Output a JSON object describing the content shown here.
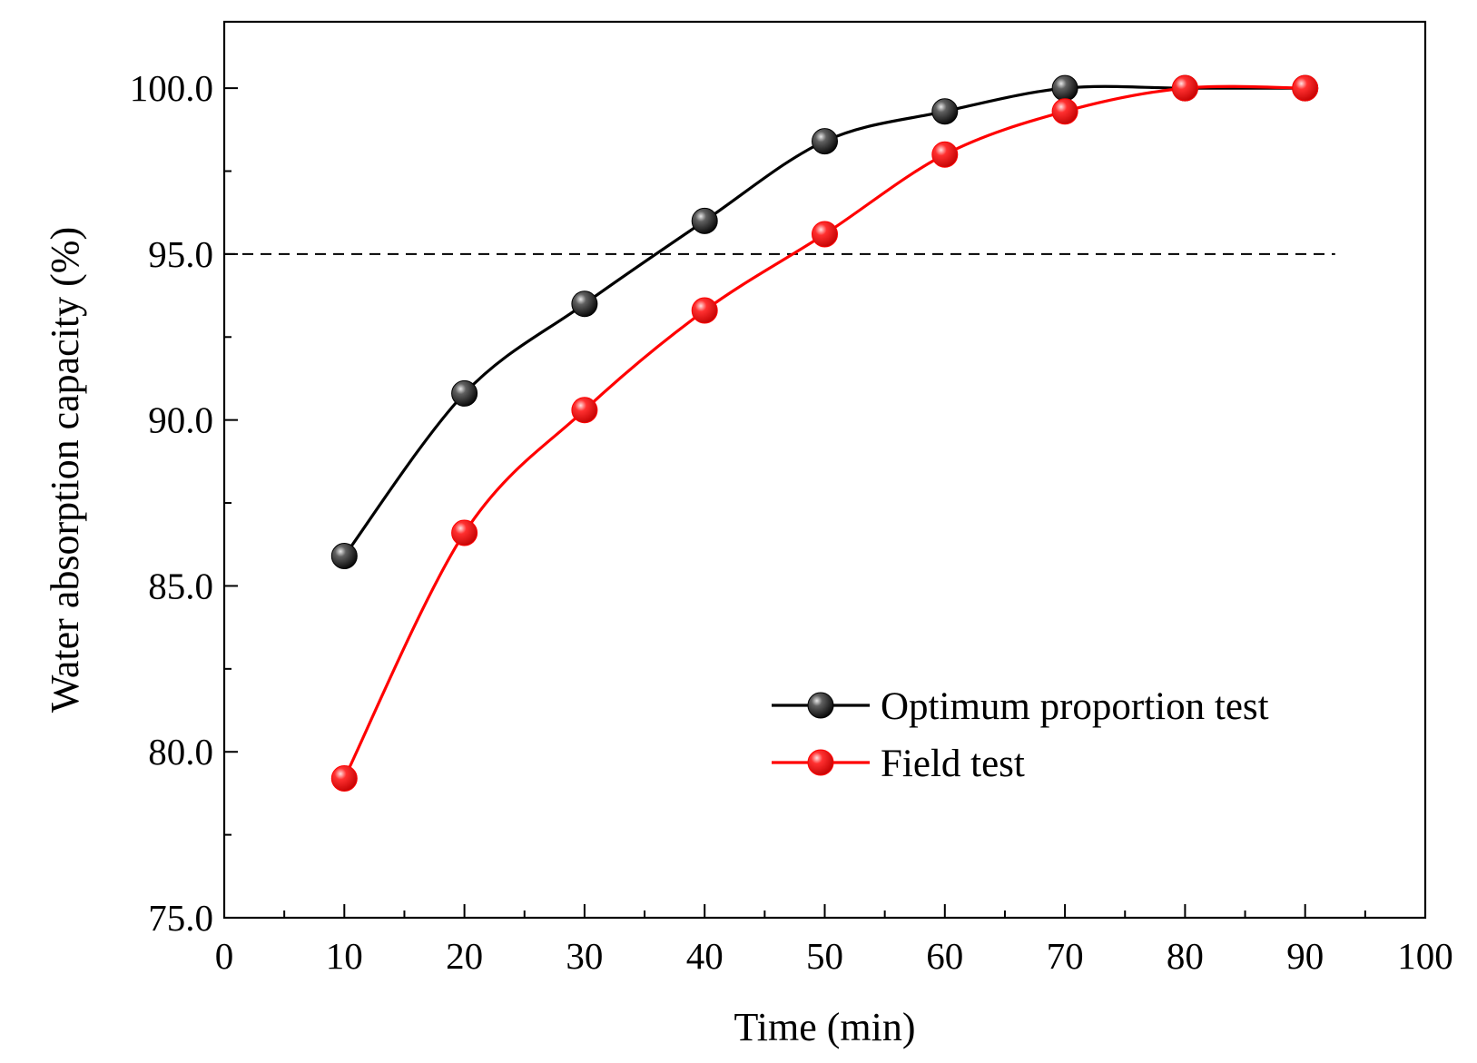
{
  "chart_data": {
    "type": "line",
    "title": "",
    "xlabel": "Time (min)",
    "ylabel": "Water absorption capacity (%)",
    "xlim": [
      0,
      100
    ],
    "ylim": [
      75,
      102
    ],
    "x_ticks": [
      0,
      10,
      20,
      30,
      40,
      50,
      60,
      70,
      80,
      90,
      100
    ],
    "y_ticks": [
      75,
      80,
      85,
      90,
      95,
      100
    ],
    "x_tick_labels": [
      "0",
      "10",
      "20",
      "30",
      "40",
      "50",
      "60",
      "70",
      "80",
      "90",
      "100"
    ],
    "y_tick_labels": [
      "75.0",
      "80.0",
      "85.0",
      "90.0",
      "95.0",
      "100.0"
    ],
    "grid": false,
    "legend_position": "lower-right",
    "reference_line": {
      "y": 95.0,
      "style": "dashed",
      "color": "#000000"
    },
    "series": [
      {
        "name": "Optimum proportion test",
        "color": "#000000",
        "marker": "sphere",
        "x": [
          10,
          20,
          30,
          40,
          50,
          60,
          70,
          80,
          90
        ],
        "y": [
          85.9,
          90.8,
          93.5,
          96.0,
          98.4,
          99.3,
          100.0,
          100.0,
          100.0
        ]
      },
      {
        "name": "Field test",
        "color": "#ff0000",
        "marker": "sphere",
        "x": [
          10,
          20,
          30,
          40,
          50,
          60,
          70,
          80,
          90
        ],
        "y": [
          79.2,
          86.6,
          90.3,
          93.3,
          95.6,
          98.0,
          99.3,
          100.0,
          100.0
        ]
      }
    ]
  }
}
